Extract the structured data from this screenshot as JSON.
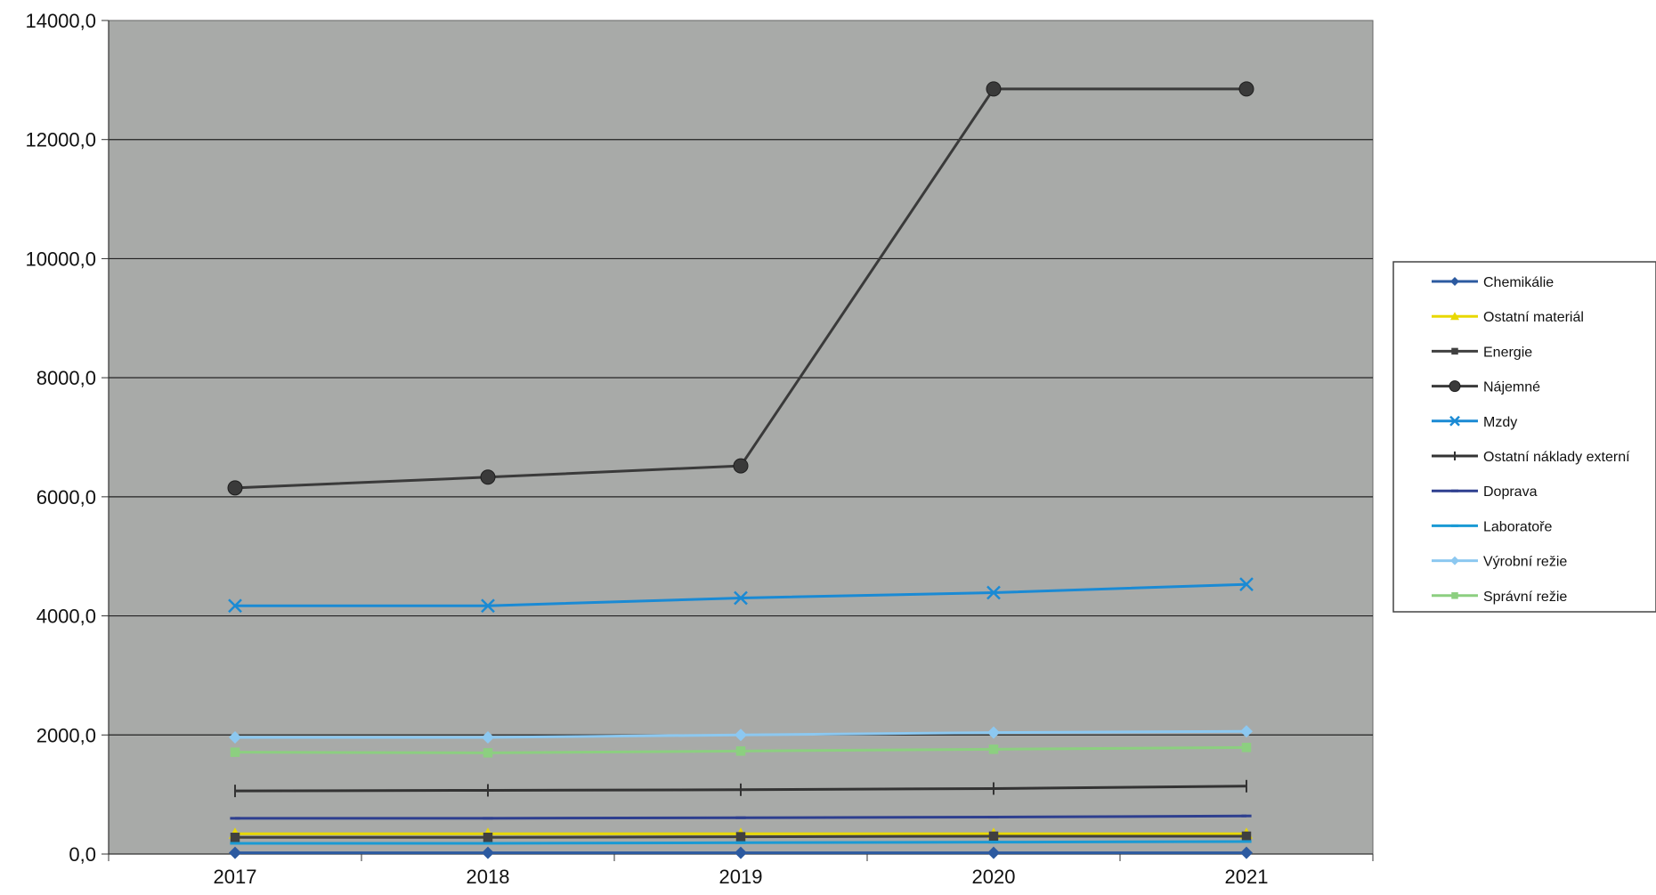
{
  "chart_data": {
    "type": "line",
    "title": "",
    "xlabel": "",
    "ylabel": "",
    "categories": [
      "2017",
      "2018",
      "2019",
      "2020",
      "2021"
    ],
    "ylim": [
      0,
      14000
    ],
    "yticks": [
      0,
      2000,
      4000,
      6000,
      8000,
      10000,
      12000,
      14000
    ],
    "ytick_labels": [
      "0,0",
      "2000,0",
      "4000,0",
      "6000,0",
      "8000,0",
      "10000,0",
      "12000,0",
      "14000,0"
    ],
    "grid": "horizontal",
    "legend_position": "right",
    "plot_background": "#a8aaa8",
    "series": [
      {
        "name": "Chemikálie",
        "values": [
          20,
          20,
          20,
          20,
          20
        ],
        "color": "#2c5aa0",
        "marker": "diamond"
      },
      {
        "name": "Ostatní materiál",
        "values": [
          340,
          340,
          340,
          340,
          340
        ],
        "color": "#e8d800",
        "marker": "triangle"
      },
      {
        "name": "Energie",
        "values": [
          280,
          280,
          290,
          300,
          300
        ],
        "color": "#404040",
        "marker": "square"
      },
      {
        "name": "Nájemné",
        "values": [
          6150,
          6330,
          6520,
          12850,
          12850
        ],
        "color": "#3a3a3a",
        "marker": "circle"
      },
      {
        "name": "Mzdy",
        "values": [
          4170,
          4170,
          4300,
          4390,
          4530
        ],
        "color": "#1a8ad4",
        "marker": "x"
      },
      {
        "name": "Ostatní náklady externí",
        "values": [
          1060,
          1070,
          1080,
          1100,
          1140
        ],
        "color": "#333333",
        "marker": "plus"
      },
      {
        "name": "Doprava",
        "values": [
          600,
          600,
          610,
          620,
          640
        ],
        "color": "#2e3f8f",
        "marker": "dash"
      },
      {
        "name": "Laboratoře",
        "values": [
          180,
          180,
          190,
          200,
          210
        ],
        "color": "#1a9ad4",
        "marker": "dash"
      },
      {
        "name": "Výrobní režie",
        "values": [
          1960,
          1960,
          2000,
          2040,
          2060
        ],
        "color": "#8cc8f0",
        "marker": "diamond"
      },
      {
        "name": "Správní režie",
        "values": [
          1710,
          1700,
          1730,
          1760,
          1790
        ],
        "color": "#8ccf80",
        "marker": "square"
      }
    ]
  }
}
